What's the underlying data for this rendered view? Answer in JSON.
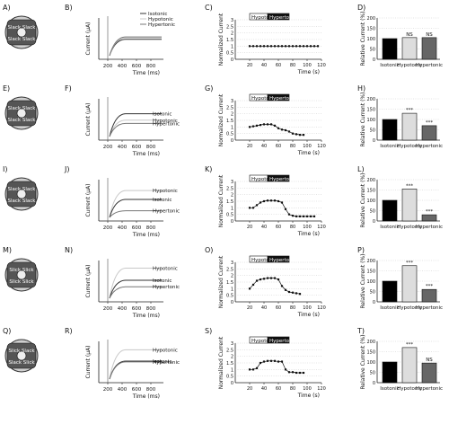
{
  "figure": {
    "rows": [
      {
        "icon": {
          "letter": "A)",
          "labels": [
            "Slack Slack",
            "Slack Slack"
          ]
        },
        "current": {
          "letter": "B)",
          "ylabel": "Current (µA)",
          "xlabel": "Time (ms)",
          "xticks": [
            "200",
            "400",
            "600",
            "800"
          ],
          "legend": [
            "Isotonic",
            "Hypotonic",
            "Hypertonic"
          ]
        },
        "time": {
          "letter": "C)",
          "ylabel": "Normalized Current",
          "xlabel": "Time (s)",
          "xticks": [
            "20",
            "40",
            "60",
            "80",
            "100",
            "120"
          ],
          "yticks": [
            "0",
            "0.5",
            "1",
            "1.5",
            "2",
            "2.5",
            "3"
          ],
          "bar": [
            "Hypotonic",
            "Hypertonic"
          ]
        },
        "bar": {
          "letter": "D)",
          "ylabel": "Relative Current (%)",
          "yticks": [
            "0",
            "50",
            "100",
            "150",
            "200"
          ],
          "sig": [
            "",
            "NS",
            "NS"
          ]
        }
      },
      {
        "icon": {
          "letter": "E)",
          "labels": [
            "Slack Slack",
            "Slack Slack"
          ]
        },
        "current": {
          "letter": "F)",
          "ylabel": "Current (µA)",
          "xlabel": "Time (ms)",
          "xticks": [
            "200",
            "400",
            "600",
            "800"
          ],
          "trace_labels": [
            "Hypotonic",
            "Isotonic",
            "Hypertonic"
          ]
        },
        "time": {
          "letter": "G)",
          "ylabel": "Normalized Current",
          "xlabel": "Time (s)",
          "xticks": [
            "20",
            "40",
            "60",
            "80",
            "100",
            "120"
          ],
          "yticks": [
            "0",
            "0.5",
            "1",
            "1.5",
            "2",
            "2.5",
            "3"
          ],
          "bar": [
            "Hypotonic",
            "Hypertonic"
          ]
        },
        "bar": {
          "letter": "H)",
          "ylabel": "Relative Current (%)",
          "yticks": [
            "0",
            "50",
            "100",
            "150",
            "200"
          ],
          "sig": [
            "",
            "***",
            "***"
          ]
        }
      },
      {
        "icon": {
          "letter": "I)",
          "labels": [
            "Slack Slack",
            "Slack Slack"
          ]
        },
        "current": {
          "letter": "J)",
          "ylabel": "Current (µA)",
          "xlabel": "Time (ms)",
          "xticks": [
            "200",
            "400",
            "600",
            "800"
          ],
          "trace_labels": [
            "Hypotonic",
            "Isotonic",
            "Hypertonic"
          ]
        },
        "time": {
          "letter": "K)",
          "ylabel": "Normalized Current",
          "xlabel": "Time (s)",
          "xticks": [
            "20",
            "40",
            "60",
            "80",
            "100",
            "120"
          ],
          "yticks": [
            "0",
            "0.5",
            "1",
            "1.5",
            "2",
            "2.5",
            "3"
          ],
          "bar": [
            "Hypotonic",
            "Hypertonic"
          ]
        },
        "bar": {
          "letter": "L)",
          "ylabel": "Relative Current (%)",
          "yticks": [
            "0",
            "50",
            "100",
            "150",
            "200"
          ],
          "sig": [
            "",
            "***",
            "***"
          ]
        }
      },
      {
        "icon": {
          "letter": "M)",
          "labels": [
            "Slick Slick",
            "Slick Slick"
          ]
        },
        "current": {
          "letter": "N)",
          "ylabel": "Current (µA)",
          "xlabel": "Time (ms)",
          "xticks": [
            "200",
            "400",
            "600",
            "800"
          ],
          "trace_labels": [
            "Hypotonic",
            "Isotonic",
            "Hypertonic"
          ]
        },
        "time": {
          "letter": "O)",
          "ylabel": "Normalized Current",
          "xlabel": "Time (s)",
          "xticks": [
            "20",
            "40",
            "60",
            "80",
            "100",
            "120"
          ],
          "yticks": [
            "0",
            "0.5",
            "1",
            "1.5",
            "2",
            "2.5",
            "3"
          ],
          "bar": [
            "Hypotonic",
            "Hypertonic"
          ]
        },
        "bar": {
          "letter": "P)",
          "ylabel": "Relative Current (%)",
          "yticks": [
            "0",
            "50",
            "100",
            "150",
            "200"
          ],
          "sig": [
            "",
            "***",
            "***"
          ]
        }
      },
      {
        "icon": {
          "letter": "Q)",
          "labels": [
            "Slick Slack",
            "Slack Slick"
          ]
        },
        "current": {
          "letter": "R)",
          "ylabel": "Current (µA)",
          "xlabel": "Time (ms)",
          "xticks": [
            "200",
            "400",
            "600",
            "800"
          ],
          "trace_labels": [
            "Hypotonic",
            "Isotonic",
            "Hypertonic"
          ]
        },
        "time": {
          "letter": "S)",
          "ylabel": "Normalized Current",
          "xlabel": "Time (s)",
          "xticks": [
            "20",
            "40",
            "60",
            "80",
            "100",
            "120"
          ],
          "yticks": [
            "0",
            "0.5",
            "1",
            "1.5",
            "2",
            "2.5",
            "3"
          ],
          "bar": [
            "Hypotonic",
            "Hypertonic"
          ]
        },
        "bar": {
          "letter": "T)",
          "ylabel": "Relative Current (%)",
          "yticks": [
            "0",
            "50",
            "100",
            "150",
            "200"
          ],
          "sig": [
            "",
            "***",
            "NS"
          ]
        }
      }
    ],
    "colors": {
      "isotonic": "#000000",
      "hypotonic": "#dddddd",
      "hypertonic": "#666666",
      "trace_hypotonic": "#c8c8c8",
      "trace_isotonic": "#333333",
      "trace_hypertonic": "#777777"
    }
  },
  "chart_data": [
    {
      "type": "bar",
      "categories": [
        "Isotonic",
        "Hypotonic",
        "Hypertonic"
      ],
      "series": [
        {
          "values": [
            100,
            105,
            105
          ]
        },
        {
          "values": [
            100,
            130,
            70
          ]
        },
        {
          "values": [
            100,
            155,
            30
          ]
        },
        {
          "values": [
            100,
            175,
            60
          ]
        },
        {
          "values": [
            100,
            170,
            95
          ]
        }
      ],
      "ylabel": "Relative Current (%)",
      "ylim": [
        0,
        200
      ]
    },
    {
      "type": "line",
      "ylabel": "Normalized Current",
      "xlabel": "Time (s)",
      "xlim": [
        0,
        120
      ],
      "ylim": [
        0,
        3
      ],
      "series": [
        {
          "x": [
            20,
            25,
            30,
            35,
            40,
            45,
            50,
            55,
            60,
            65,
            70,
            75,
            80,
            85,
            90,
            95,
            100,
            105,
            110,
            115
          ],
          "y": [
            1.0,
            1.0,
            1.0,
            1.0,
            1.0,
            1.0,
            1.0,
            1.0,
            1.0,
            1.0,
            1.0,
            1.0,
            1.0,
            1.0,
            1.0,
            1.0,
            1.0,
            1.0,
            1.0,
            1.0
          ]
        },
        {
          "x": [
            20,
            25,
            30,
            35,
            40,
            45,
            50,
            55,
            60,
            65,
            70,
            75,
            80,
            85,
            90,
            95
          ],
          "y": [
            1.0,
            1.05,
            1.1,
            1.15,
            1.2,
            1.2,
            1.2,
            1.1,
            0.9,
            0.8,
            0.75,
            0.65,
            0.5,
            0.45,
            0.4,
            0.4
          ]
        },
        {
          "x": [
            20,
            25,
            30,
            35,
            40,
            45,
            50,
            55,
            60,
            65,
            70,
            75,
            80,
            85,
            90,
            95,
            100,
            105,
            110
          ],
          "y": [
            1.0,
            1.0,
            1.2,
            1.4,
            1.5,
            1.55,
            1.55,
            1.55,
            1.5,
            1.4,
            0.9,
            0.5,
            0.4,
            0.35,
            0.35,
            0.35,
            0.35,
            0.35,
            0.35
          ]
        },
        {
          "x": [
            20,
            25,
            30,
            35,
            40,
            45,
            50,
            55,
            60,
            65,
            70,
            75,
            80,
            85,
            90
          ],
          "y": [
            1.0,
            1.3,
            1.6,
            1.7,
            1.75,
            1.8,
            1.8,
            1.8,
            1.7,
            1.2,
            0.9,
            0.75,
            0.7,
            0.65,
            0.6
          ]
        },
        {
          "x": [
            20,
            25,
            30,
            35,
            40,
            45,
            50,
            55,
            60,
            65,
            70,
            75,
            80,
            85,
            90,
            95
          ],
          "y": [
            1.0,
            1.0,
            1.1,
            1.5,
            1.6,
            1.65,
            1.65,
            1.65,
            1.6,
            1.6,
            1.0,
            0.8,
            0.8,
            0.75,
            0.75,
            0.75
          ]
        }
      ]
    },
    {
      "type": "line",
      "ylabel": "Current (µA)",
      "xlabel": "Time (ms)",
      "xlim": [
        0,
        900
      ],
      "series": [
        {
          "name": "Isotonic",
          "levels": [
            0.9,
            1.0,
            1.05
          ]
        },
        {
          "name": "Hypotonic",
          "levels": [
            0.9,
            1.3,
            0.7
          ]
        },
        {
          "name": "Isotonic",
          "levels": [
            1.55,
            1.0,
            0.3
          ]
        },
        {
          "name": "Hypotonic",
          "levels": [
            1.75,
            1.0,
            0.6
          ]
        },
        {
          "name": "Hypertonic",
          "levels": [
            1.7,
            1.0,
            0.95
          ]
        }
      ]
    }
  ]
}
